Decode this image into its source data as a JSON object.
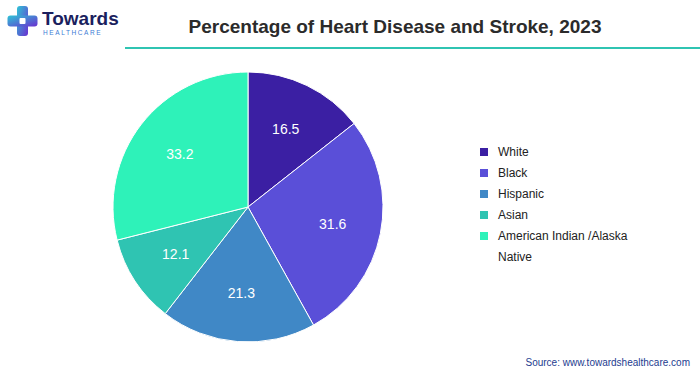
{
  "header": {
    "logo_name": "Towards",
    "logo_tagline": "HEALTHCARE"
  },
  "chart_data": {
    "type": "pie",
    "title": "Percentage of Heart Disease and Stroke, 2023",
    "categories": [
      "White",
      "Black",
      "Hispanic",
      "Asian",
      "American Indian /Alaska Native"
    ],
    "values": [
      16.5,
      31.6,
      21.3,
      12.1,
      33.2
    ],
    "colors": [
      "#3b1fa3",
      "#5a4fd8",
      "#4088c6",
      "#2fc4b2",
      "#2ef2b9"
    ],
    "data_labels": true,
    "legend": "right"
  },
  "source": "Source: www.towardshealthcare.com"
}
